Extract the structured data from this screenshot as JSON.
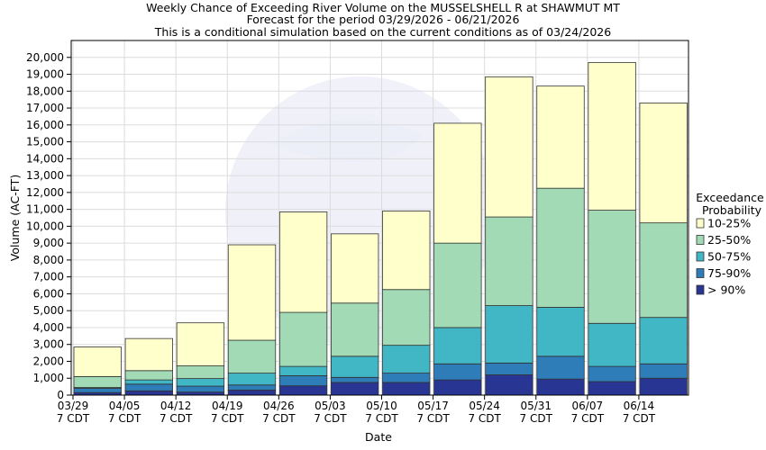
{
  "chart_data": {
    "type": "bar",
    "stacked": true,
    "title_lines": [
      "Weekly Chance of Exceeding River Volume on the MUSSELSHELL R at SHAWMUT MT",
      "Forecast for the period 03/29/2026 - 06/21/2026",
      "This is a conditional simulation based on the current conditions as of 03/24/2026"
    ],
    "xlabel": "Date",
    "ylabel": "Volume (AC-FT)",
    "ylim": [
      0,
      21000
    ],
    "yticks": [
      "0",
      "1,000",
      "2,000",
      "3,000",
      "4,000",
      "5,000",
      "6,000",
      "7,000",
      "8,000",
      "9,000",
      "10,000",
      "11,000",
      "12,000",
      "13,000",
      "14,000",
      "15,000",
      "16,000",
      "17,000",
      "18,000",
      "19,000",
      "20,000"
    ],
    "ytick_values": [
      0,
      1000,
      2000,
      3000,
      4000,
      5000,
      6000,
      7000,
      8000,
      9000,
      10000,
      11000,
      12000,
      13000,
      14000,
      15000,
      16000,
      17000,
      18000,
      19000,
      20000
    ],
    "x_ticks": [
      {
        "line1": "03/29",
        "line2": "7 CDT"
      },
      {
        "line1": "04/05",
        "line2": "7 CDT"
      },
      {
        "line1": "04/12",
        "line2": "7 CDT"
      },
      {
        "line1": "04/19",
        "line2": "7 CDT"
      },
      {
        "line1": "04/26",
        "line2": "7 CDT"
      },
      {
        "line1": "05/03",
        "line2": "7 CDT"
      },
      {
        "line1": "05/10",
        "line2": "7 CDT"
      },
      {
        "line1": "05/17",
        "line2": "7 CDT"
      },
      {
        "line1": "05/24",
        "line2": "7 CDT"
      },
      {
        "line1": "05/31",
        "line2": "7 CDT"
      },
      {
        "line1": "06/07",
        "line2": "7 CDT"
      },
      {
        "line1": "06/14",
        "line2": "7 CDT"
      }
    ],
    "grid": true,
    "legend_position": "right",
    "legend_title_lines": [
      "Exceedance",
      "Probability"
    ],
    "series": [
      {
        "name": "> 90%",
        "color": "#283593",
        "values": [
          150,
          250,
          180,
          300,
          550,
          750,
          750,
          900,
          1200,
          950,
          800,
          1000
        ]
      },
      {
        "name": "75-90%",
        "color": "#2e7cb8",
        "values": [
          250,
          400,
          350,
          300,
          600,
          300,
          550,
          950,
          700,
          1350,
          900,
          850
        ]
      },
      {
        "name": "50-75%",
        "color": "#41b6c4",
        "values": [
          50,
          250,
          450,
          700,
          550,
          1250,
          1650,
          2150,
          3400,
          2900,
          2550,
          2750
        ]
      },
      {
        "name": "25-50%",
        "color": "#a1dab4",
        "values": [
          650,
          550,
          750,
          1950,
          3200,
          3150,
          3300,
          5000,
          5250,
          7050,
          6700,
          5600
        ]
      },
      {
        "name": "10-25%",
        "color": "#ffffcc",
        "values": [
          1750,
          1900,
          2550,
          5650,
          5950,
          4100,
          4650,
          7100,
          8300,
          6050,
          8750,
          7100
        ]
      }
    ]
  }
}
